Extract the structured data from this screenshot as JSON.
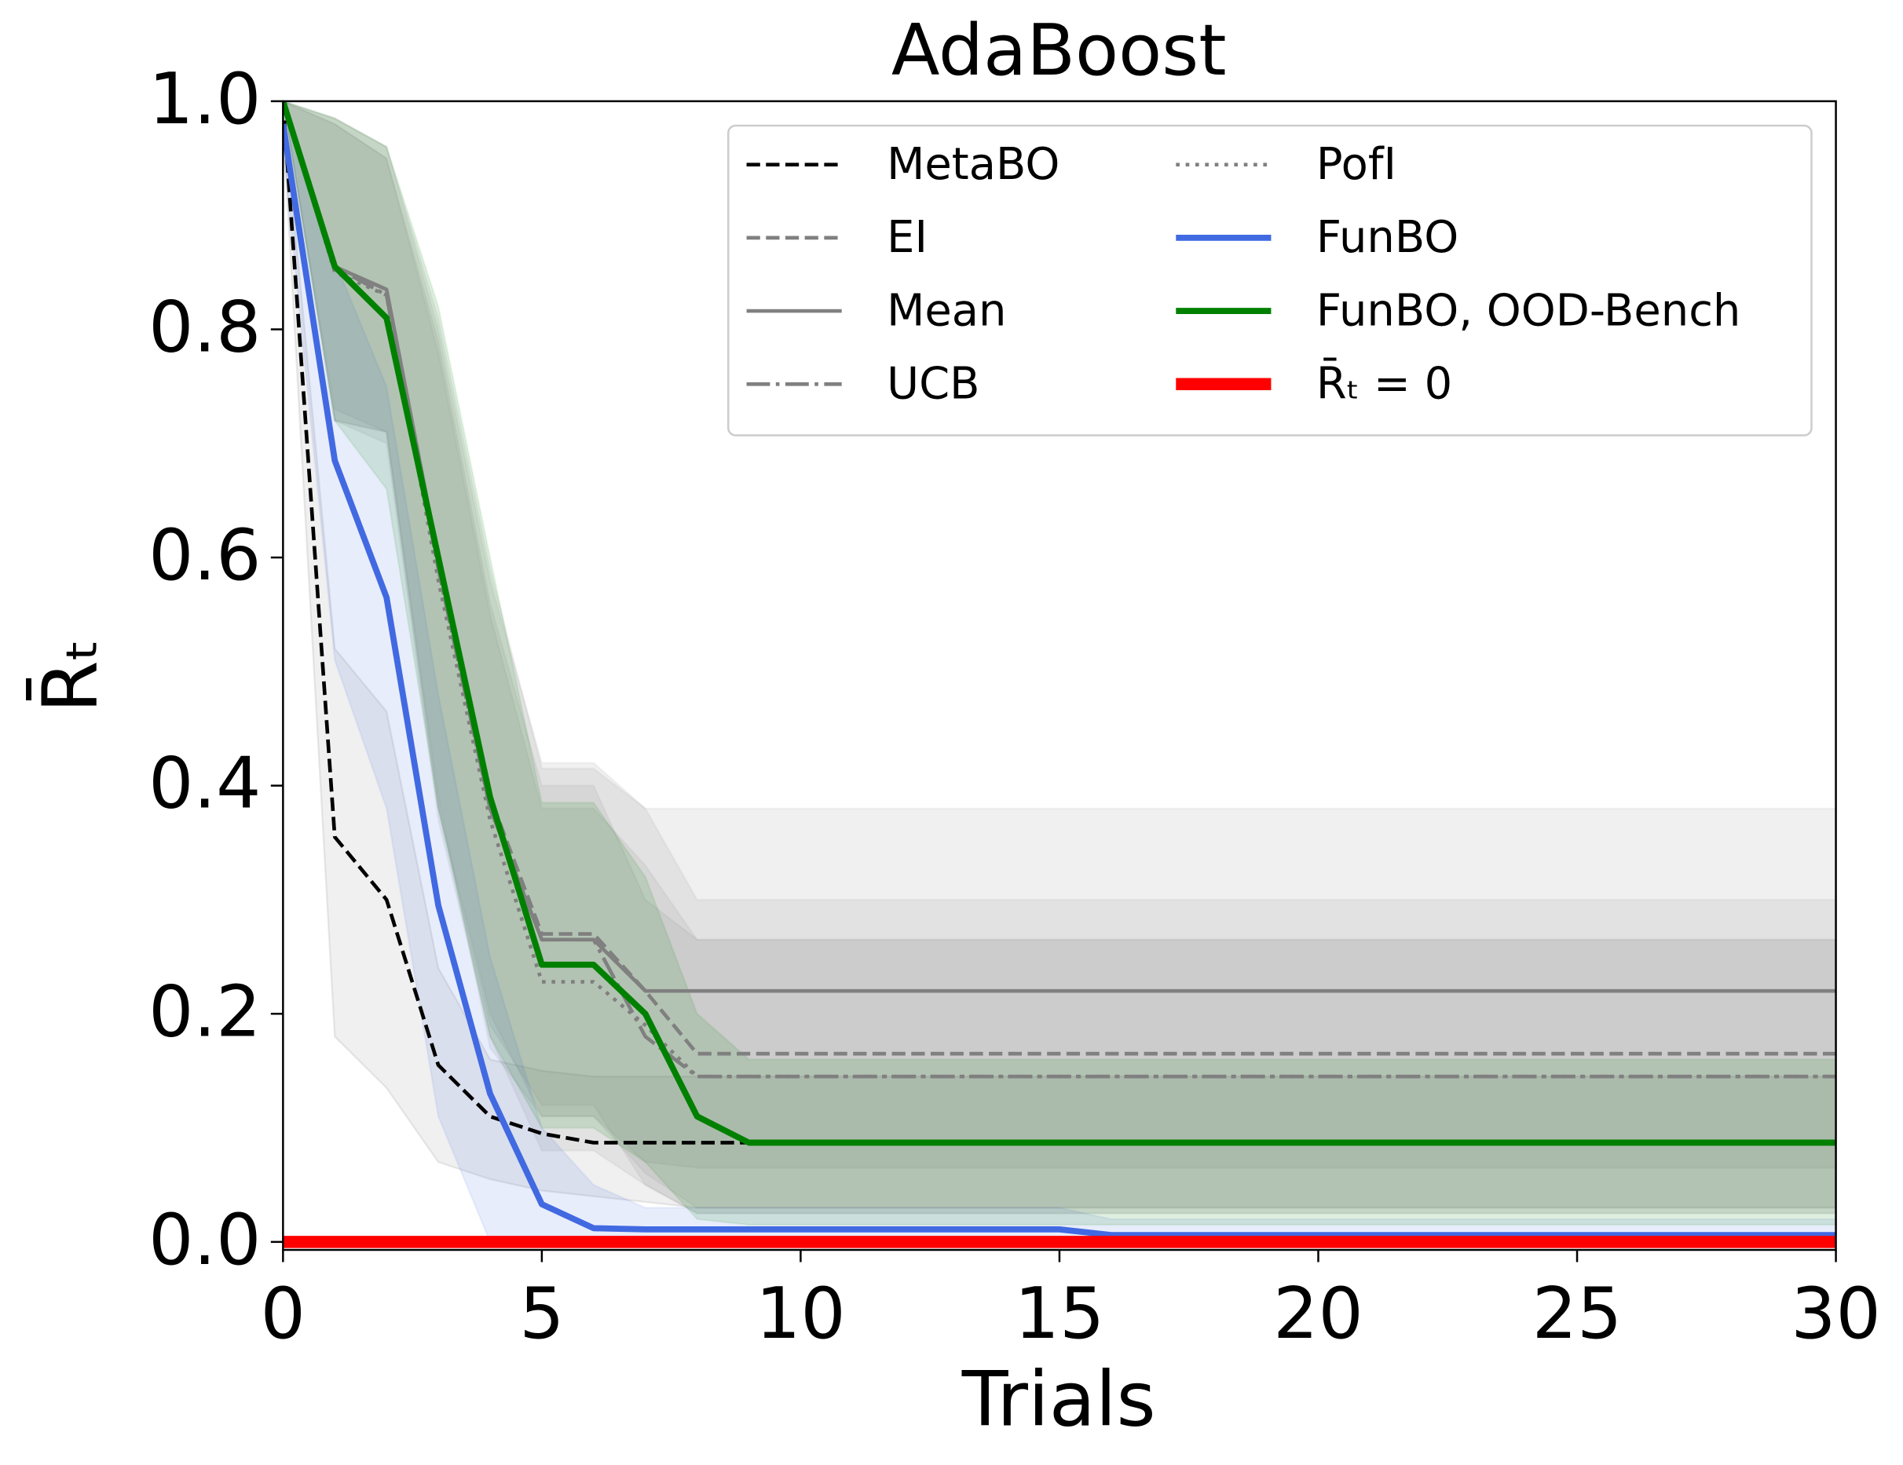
{
  "chart_data": {
    "type": "line",
    "title": "AdaBoost",
    "xlabel": "Trials",
    "ylabel": "R̄ₜ",
    "x": [
      0,
      1,
      2,
      3,
      4,
      5,
      6,
      7,
      8,
      9,
      15,
      16,
      30
    ],
    "xlim": [
      0,
      30
    ],
    "ylim": [
      -0.007,
      1.0
    ],
    "xticks": [
      0,
      5,
      10,
      15,
      20,
      25,
      30
    ],
    "yticks": [
      {
        "value": 0,
        "label": "0.0"
      },
      {
        "value": 0.2,
        "label": "0.2"
      },
      {
        "value": 0.4,
        "label": "0.4"
      },
      {
        "value": 0.6,
        "label": "0.6"
      },
      {
        "value": 0.8,
        "label": "0.8"
      },
      {
        "value": 1,
        "label": "1.0"
      }
    ],
    "legend": "upper right",
    "legend_columns": 2,
    "series": [
      {
        "name": "MetaBO",
        "color": "#000000",
        "linestyle": "dashed",
        "linewidth": 3,
        "values": [
          1.0,
          0.355,
          0.3,
          0.155,
          0.11,
          0.095,
          0.087,
          0.087,
          0.087,
          0.087,
          0.087,
          0.087,
          0.087
        ],
        "upper": [
          1.0,
          0.52,
          0.465,
          0.24,
          0.16,
          0.15,
          0.145,
          0.145,
          0.145,
          0.145,
          0.145,
          0.145,
          0.145
        ],
        "lower": [
          0.98,
          0.18,
          0.135,
          0.07,
          0.055,
          0.045,
          0.04,
          0.035,
          0.03,
          0.03,
          0.03,
          0.03,
          0.03
        ]
      },
      {
        "name": "EI",
        "color": "#808080",
        "linestyle": "dashed",
        "linewidth": 3,
        "values": [
          1.0,
          0.855,
          0.835,
          0.6,
          0.39,
          0.27,
          0.27,
          0.22,
          0.165,
          0.165,
          0.165,
          0.165,
          0.165
        ],
        "upper": [
          1.0,
          0.985,
          0.96,
          0.8,
          0.58,
          0.42,
          0.42,
          0.38,
          0.3,
          0.3,
          0.3,
          0.3,
          0.3
        ],
        "lower": [
          1.0,
          0.72,
          0.71,
          0.38,
          0.2,
          0.11,
          0.11,
          0.06,
          0.03,
          0.03,
          0.03,
          0.03,
          0.03
        ]
      },
      {
        "name": "Mean",
        "color": "#808080",
        "linestyle": "solid",
        "linewidth": 3,
        "values": [
          1.0,
          0.855,
          0.835,
          0.6,
          0.38,
          0.265,
          0.265,
          0.22,
          0.22,
          0.22,
          0.22,
          0.22,
          0.22
        ],
        "upper": [
          1.0,
          0.985,
          0.96,
          0.81,
          0.59,
          0.415,
          0.415,
          0.38,
          0.38,
          0.38,
          0.38,
          0.38,
          0.38
        ],
        "lower": [
          1.0,
          0.72,
          0.71,
          0.39,
          0.17,
          0.11,
          0.11,
          0.07,
          0.065,
          0.065,
          0.065,
          0.065,
          0.065
        ]
      },
      {
        "name": "UCB",
        "color": "#808080",
        "linestyle": "dashdot",
        "linewidth": 3,
        "values": [
          1.0,
          0.855,
          0.83,
          0.59,
          0.38,
          0.265,
          0.265,
          0.18,
          0.145,
          0.145,
          0.145,
          0.145,
          0.145
        ],
        "upper": [
          1.0,
          0.98,
          0.95,
          0.79,
          0.56,
          0.4,
          0.4,
          0.3,
          0.265,
          0.265,
          0.265,
          0.265,
          0.265
        ],
        "lower": [
          1.0,
          0.73,
          0.71,
          0.38,
          0.19,
          0.12,
          0.12,
          0.05,
          0.025,
          0.025,
          0.025,
          0.025,
          0.025
        ]
      },
      {
        "name": "PofI",
        "color": "#808080",
        "linestyle": "dotted",
        "linewidth": 3,
        "values": [
          1.0,
          0.85,
          0.83,
          0.58,
          0.37,
          0.228,
          0.228,
          0.19,
          0.145,
          0.145,
          0.145,
          0.145,
          0.145
        ],
        "upper": [
          1.0,
          0.98,
          0.95,
          0.78,
          0.55,
          0.38,
          0.38,
          0.33,
          0.265,
          0.265,
          0.265,
          0.265,
          0.265
        ],
        "lower": [
          1.0,
          0.72,
          0.7,
          0.37,
          0.18,
          0.08,
          0.08,
          0.05,
          0.025,
          0.025,
          0.025,
          0.025,
          0.025
        ]
      },
      {
        "name": "FunBO",
        "color": "#4169e1",
        "linestyle": "solid",
        "linewidth": 5,
        "values": [
          0.98,
          0.685,
          0.565,
          0.295,
          0.13,
          0.033,
          0.012,
          0.011,
          0.011,
          0.011,
          0.011,
          0.006,
          0.006
        ],
        "upper": [
          1.0,
          0.86,
          0.75,
          0.48,
          0.25,
          0.1,
          0.05,
          0.03,
          0.03,
          0.03,
          0.03,
          0.02,
          0.02
        ],
        "lower": [
          0.96,
          0.51,
          0.38,
          0.11,
          0.0,
          0.0,
          0.0,
          0.0,
          0.0,
          0.0,
          0.0,
          0.0,
          0.0
        ]
      },
      {
        "name": "FunBO, OOD-Bench",
        "color": "#008000",
        "linestyle": "solid",
        "linewidth": 5,
        "values": [
          1.0,
          0.855,
          0.81,
          0.6,
          0.39,
          0.243,
          0.243,
          0.2,
          0.11,
          0.087,
          0.087,
          0.087,
          0.087
        ],
        "upper": [
          1.0,
          0.985,
          0.96,
          0.82,
          0.6,
          0.385,
          0.385,
          0.32,
          0.2,
          0.16,
          0.16,
          0.16,
          0.16
        ],
        "lower": [
          1.0,
          0.72,
          0.66,
          0.38,
          0.18,
          0.1,
          0.1,
          0.07,
          0.02,
          0.015,
          0.015,
          0.015,
          0.015
        ]
      },
      {
        "name": "R̄ₜ = 0",
        "color": "#ff0000",
        "linestyle": "solid",
        "linewidth": 10,
        "values": [
          0,
          0,
          0,
          0,
          0,
          0,
          0,
          0,
          0,
          0,
          0,
          0,
          0
        ]
      }
    ]
  }
}
